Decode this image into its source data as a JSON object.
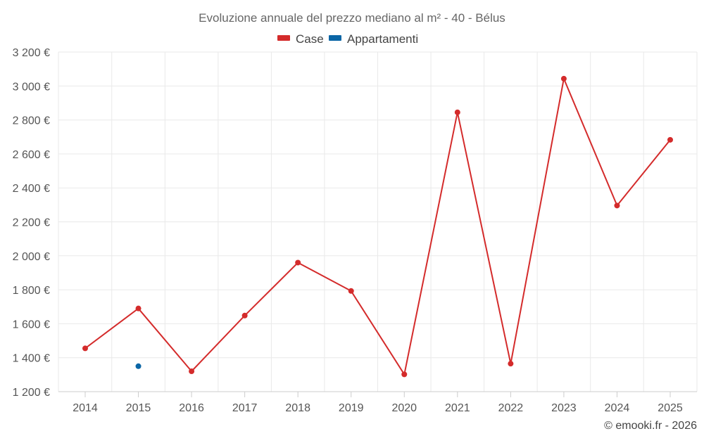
{
  "chart_data": {
    "type": "line",
    "title": "Evoluzione annuale del prezzo mediano al m² - 40 - Bélus",
    "x": [
      "2014",
      "2015",
      "2016",
      "2017",
      "2018",
      "2019",
      "2020",
      "2021",
      "2022",
      "2023",
      "2024",
      "2025"
    ],
    "yticks": [
      1200,
      1400,
      1600,
      1800,
      2000,
      2200,
      2400,
      2600,
      2800,
      3000,
      3200
    ],
    "ytick_labels": [
      "1 200 €",
      "1 400 €",
      "1 600 €",
      "1 800 €",
      "2 000 €",
      "2 200 €",
      "2 400 €",
      "2 600 €",
      "2 800 €",
      "3 000 €",
      "3 200 €"
    ],
    "ylim": [
      1200,
      3200
    ],
    "grid": true,
    "legend_position": "top-center",
    "series": [
      {
        "name": "Case",
        "color": "#d42b2b",
        "values": [
          1455,
          1690,
          1320,
          1648,
          1960,
          1793,
          1302,
          2845,
          1365,
          3043,
          2296,
          2683
        ]
      },
      {
        "name": "Appartamenti",
        "color": "#0b66a6",
        "values": [
          null,
          1350,
          null,
          null,
          null,
          null,
          null,
          null,
          null,
          null,
          null,
          null
        ]
      }
    ],
    "credit": "© emooki.fr - 2026"
  }
}
